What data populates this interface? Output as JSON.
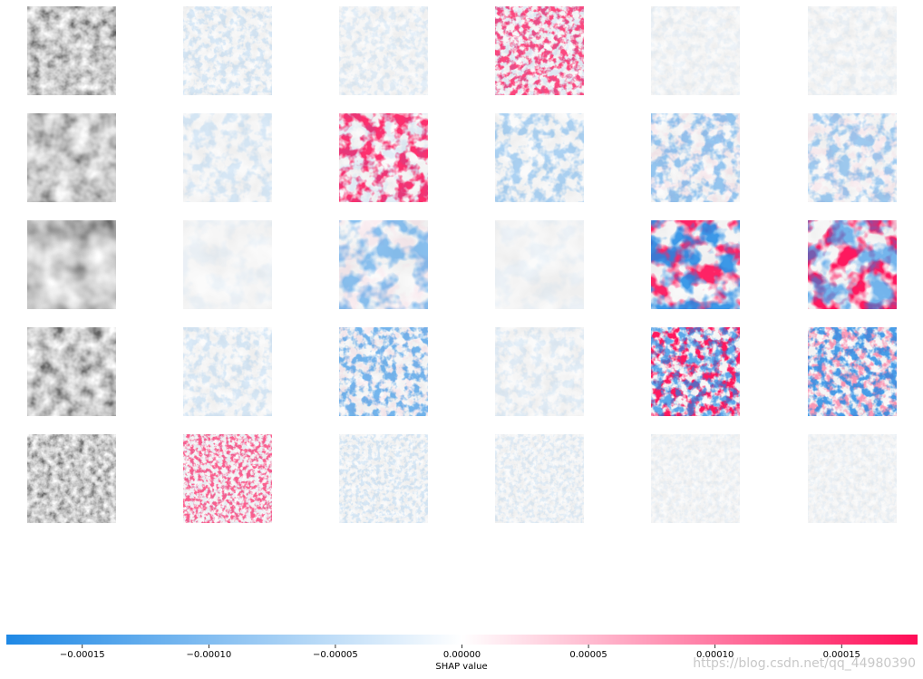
{
  "chart_data": {
    "type": "colorbar",
    "xlabel": "SHAP value",
    "xlim": [
      -0.00018,
      0.00018
    ],
    "xticks": [
      {
        "value": -0.00015,
        "label": "−0.00015"
      },
      {
        "value": -0.0001,
        "label": "−0.00010"
      },
      {
        "value": -5e-05,
        "label": "−0.00005"
      },
      {
        "value": 0,
        "label": "0.00000"
      },
      {
        "value": 5e-05,
        "label": "0.00005"
      },
      {
        "value": 0.0001,
        "label": "0.00010"
      },
      {
        "value": 0.00015,
        "label": "0.00015"
      }
    ],
    "colors": [
      "#1e88e5",
      "#ffffff",
      "#ff0d57"
    ],
    "watermark": "https://blog.csdn.net/qq_44980390"
  }
}
